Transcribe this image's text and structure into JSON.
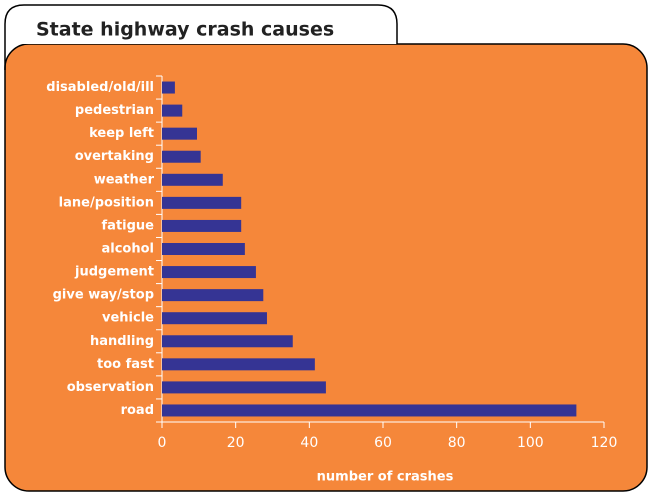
{
  "chart_data": {
    "type": "bar",
    "orientation": "horizontal",
    "title": "State highway crash causes",
    "x_label": "number of crashes",
    "categories": [
      "disabled/old/ill",
      "pedestrian",
      "keep left",
      "overtaking",
      "weather",
      "lane/position",
      "fatigue",
      "alcohol",
      "judgement",
      "give way/stop",
      "vehicle",
      "handling",
      "too fast",
      "observation",
      "road"
    ],
    "values": [
      3.5,
      5.5,
      9.5,
      10.5,
      16.5,
      21.5,
      21.5,
      22.5,
      25.5,
      27.5,
      28.5,
      35.5,
      41.5,
      44.5,
      112.5
    ],
    "color": "#353494",
    "xlim": [
      0,
      120
    ],
    "xticks": [
      0,
      20,
      40,
      60,
      80,
      100,
      120
    ]
  }
}
